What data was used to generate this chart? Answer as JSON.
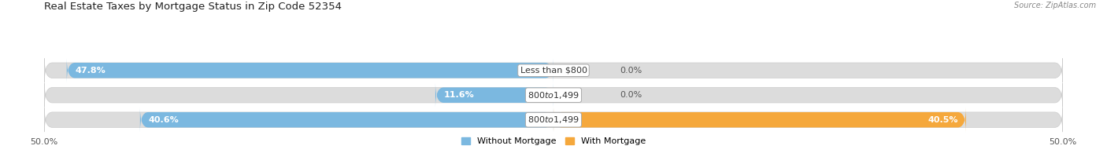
{
  "title": "Real Estate Taxes by Mortgage Status in Zip Code 52354",
  "source": "Source: ZipAtlas.com",
  "rows": [
    {
      "label": "Less than $800",
      "without_mortgage": 47.8,
      "with_mortgage": 0.0
    },
    {
      "label": "$800 to $1,499",
      "without_mortgage": 11.6,
      "with_mortgage": 0.0
    },
    {
      "label": "$800 to $1,499",
      "without_mortgage": 40.6,
      "with_mortgage": 40.5
    }
  ],
  "x_min": -50.0,
  "x_max": 50.0,
  "color_without": "#7bb8e0",
  "color_with": "#f5a83c",
  "color_bg_bar": "#dcdcdc",
  "title_fontsize": 9.5,
  "bar_label_fontsize": 8,
  "tick_fontsize": 8,
  "legend_fontsize": 8,
  "source_fontsize": 7
}
